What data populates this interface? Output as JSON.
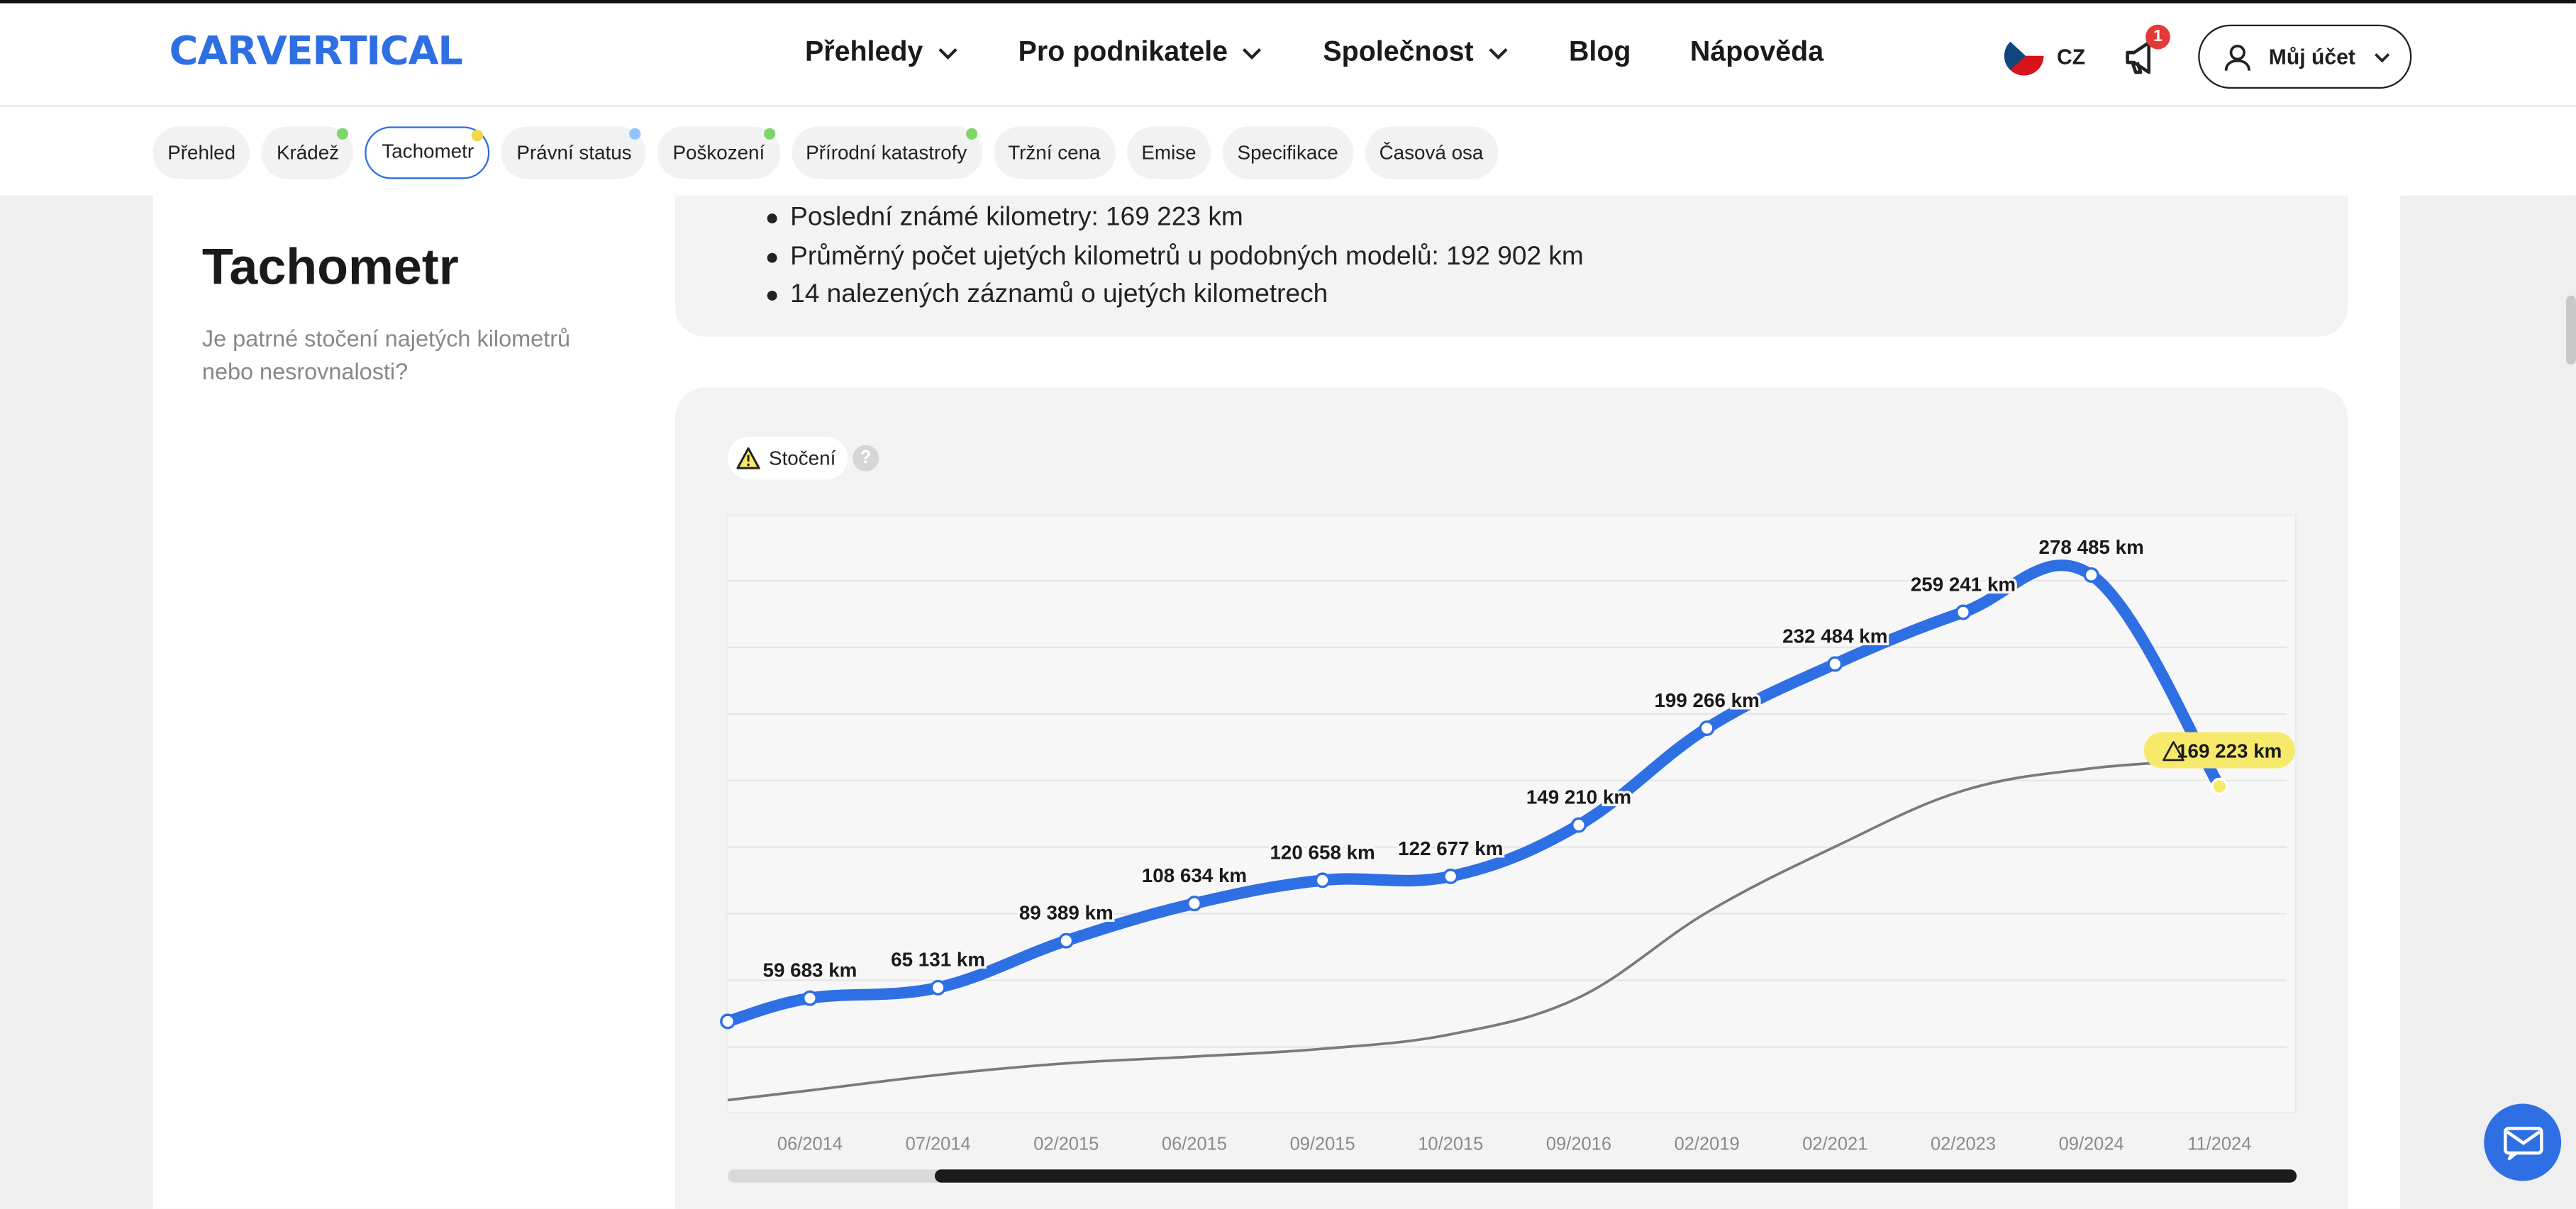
{
  "header": {
    "logo": "CARVERTICAL",
    "nav": [
      {
        "label": "Přehledy",
        "has_menu": true
      },
      {
        "label": "Pro podnikatele",
        "has_menu": true
      },
      {
        "label": "Společnost",
        "has_menu": true
      },
      {
        "label": "Blog",
        "has_menu": false
      },
      {
        "label": "Nápověda",
        "has_menu": false
      }
    ],
    "language": "CZ",
    "notification_count": "1",
    "account_label": "Můj účet"
  },
  "tabs": [
    {
      "label": "Přehled",
      "dot": null
    },
    {
      "label": "Krádež",
      "dot": "#7ed66b"
    },
    {
      "label": "Tachometr",
      "dot": "#f2d94b",
      "active": true
    },
    {
      "label": "Právní status",
      "dot": "#8fc5ff"
    },
    {
      "label": "Poškození",
      "dot": "#7ed66b"
    },
    {
      "label": "Přírodní katastrofy",
      "dot": "#7ed66b"
    },
    {
      "label": "Tržní cena",
      "dot": null
    },
    {
      "label": "Emise",
      "dot": null
    },
    {
      "label": "Specifikace",
      "dot": null
    },
    {
      "label": "Časová osa",
      "dot": null
    }
  ],
  "section": {
    "title": "Tachometr",
    "subtitle": "Je patrné stočení najetých kilometrů nebo nesrovnalosti?"
  },
  "summary": [
    "Poslední známé kilometry: 169 223 km",
    "Průměrný počet ujetých kilometrů u podobných modelů: 192 902 km",
    "14 nalezených záznamů o ujetých kilometrech"
  ],
  "alert_badge": {
    "label": "Stočení",
    "help": "?"
  },
  "colors": {
    "accent": "#2f6fe4",
    "warning": "#f7e96b",
    "average_line": "#7a7a7a"
  },
  "chart_data": {
    "type": "line",
    "categories": [
      "06/2014",
      "07/2014",
      "02/2015",
      "06/2015",
      "09/2015",
      "10/2015",
      "09/2016",
      "02/2019",
      "02/2021",
      "02/2023",
      "09/2024",
      "11/2024"
    ],
    "series": [
      {
        "values": [
          59683,
          65131,
          89389,
          108634,
          120658,
          122677,
          149210,
          199266,
          232484,
          259241,
          278485,
          169223
        ],
        "labels": [
          "59 683 km",
          "65 131 km",
          "89 389 km",
          "108 634 km",
          "120 658 km",
          "122 677 km",
          "149 210 km",
          "199 266 km",
          "232 484 km",
          "259 241 km",
          "278 485 km",
          "169 223 km"
        ],
        "color": "#2f6fe4",
        "flagged_last": true
      },
      {
        "values": [
          12000,
          20000,
          26000,
          29500,
          33500,
          41000,
          60000,
          104000,
          138000,
          167000,
          178500,
          183000
        ],
        "color": "#7a7a7a"
      }
    ],
    "y_min": 0,
    "y_max": 310000,
    "grid": true
  }
}
